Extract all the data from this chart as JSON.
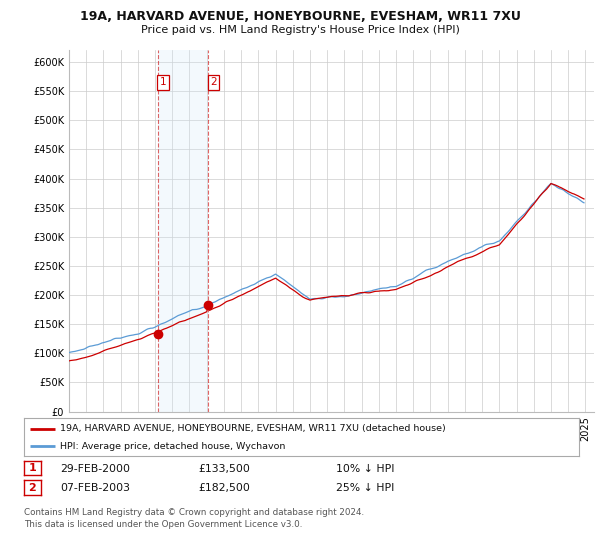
{
  "title1": "19A, HARVARD AVENUE, HONEYBOURNE, EVESHAM, WR11 7XU",
  "title2": "Price paid vs. HM Land Registry's House Price Index (HPI)",
  "ylabel_ticks": [
    "£0",
    "£50K",
    "£100K",
    "£150K",
    "£200K",
    "£250K",
    "£300K",
    "£350K",
    "£400K",
    "£450K",
    "£500K",
    "£550K",
    "£600K"
  ],
  "ytick_vals": [
    0,
    50000,
    100000,
    150000,
    200000,
    250000,
    300000,
    350000,
    400000,
    450000,
    500000,
    550000,
    600000
  ],
  "ylim": [
    0,
    620000
  ],
  "hpi_color": "#5b9bd5",
  "price_color": "#cc0000",
  "t1_year": 2000.167,
  "t2_year": 2003.1,
  "t1_price": 133500,
  "t2_price": 182500,
  "legend_label1": "19A, HARVARD AVENUE, HONEYBOURNE, EVESHAM, WR11 7XU (detached house)",
  "legend_label2": "HPI: Average price, detached house, Wychavon",
  "footer1": "Contains HM Land Registry data © Crown copyright and database right 2024.",
  "footer2": "This data is licensed under the Open Government Licence v3.0.",
  "table_row1": [
    "1",
    "29-FEB-2000",
    "£133,500",
    "10% ↓ HPI"
  ],
  "table_row2": [
    "2",
    "07-FEB-2003",
    "£182,500",
    "25% ↓ HPI"
  ],
  "background_color": "#ffffff",
  "grid_color": "#cccccc",
  "shade_color": "#d0e8f8",
  "xlim_start": 1995,
  "xlim_end": 2025.5
}
